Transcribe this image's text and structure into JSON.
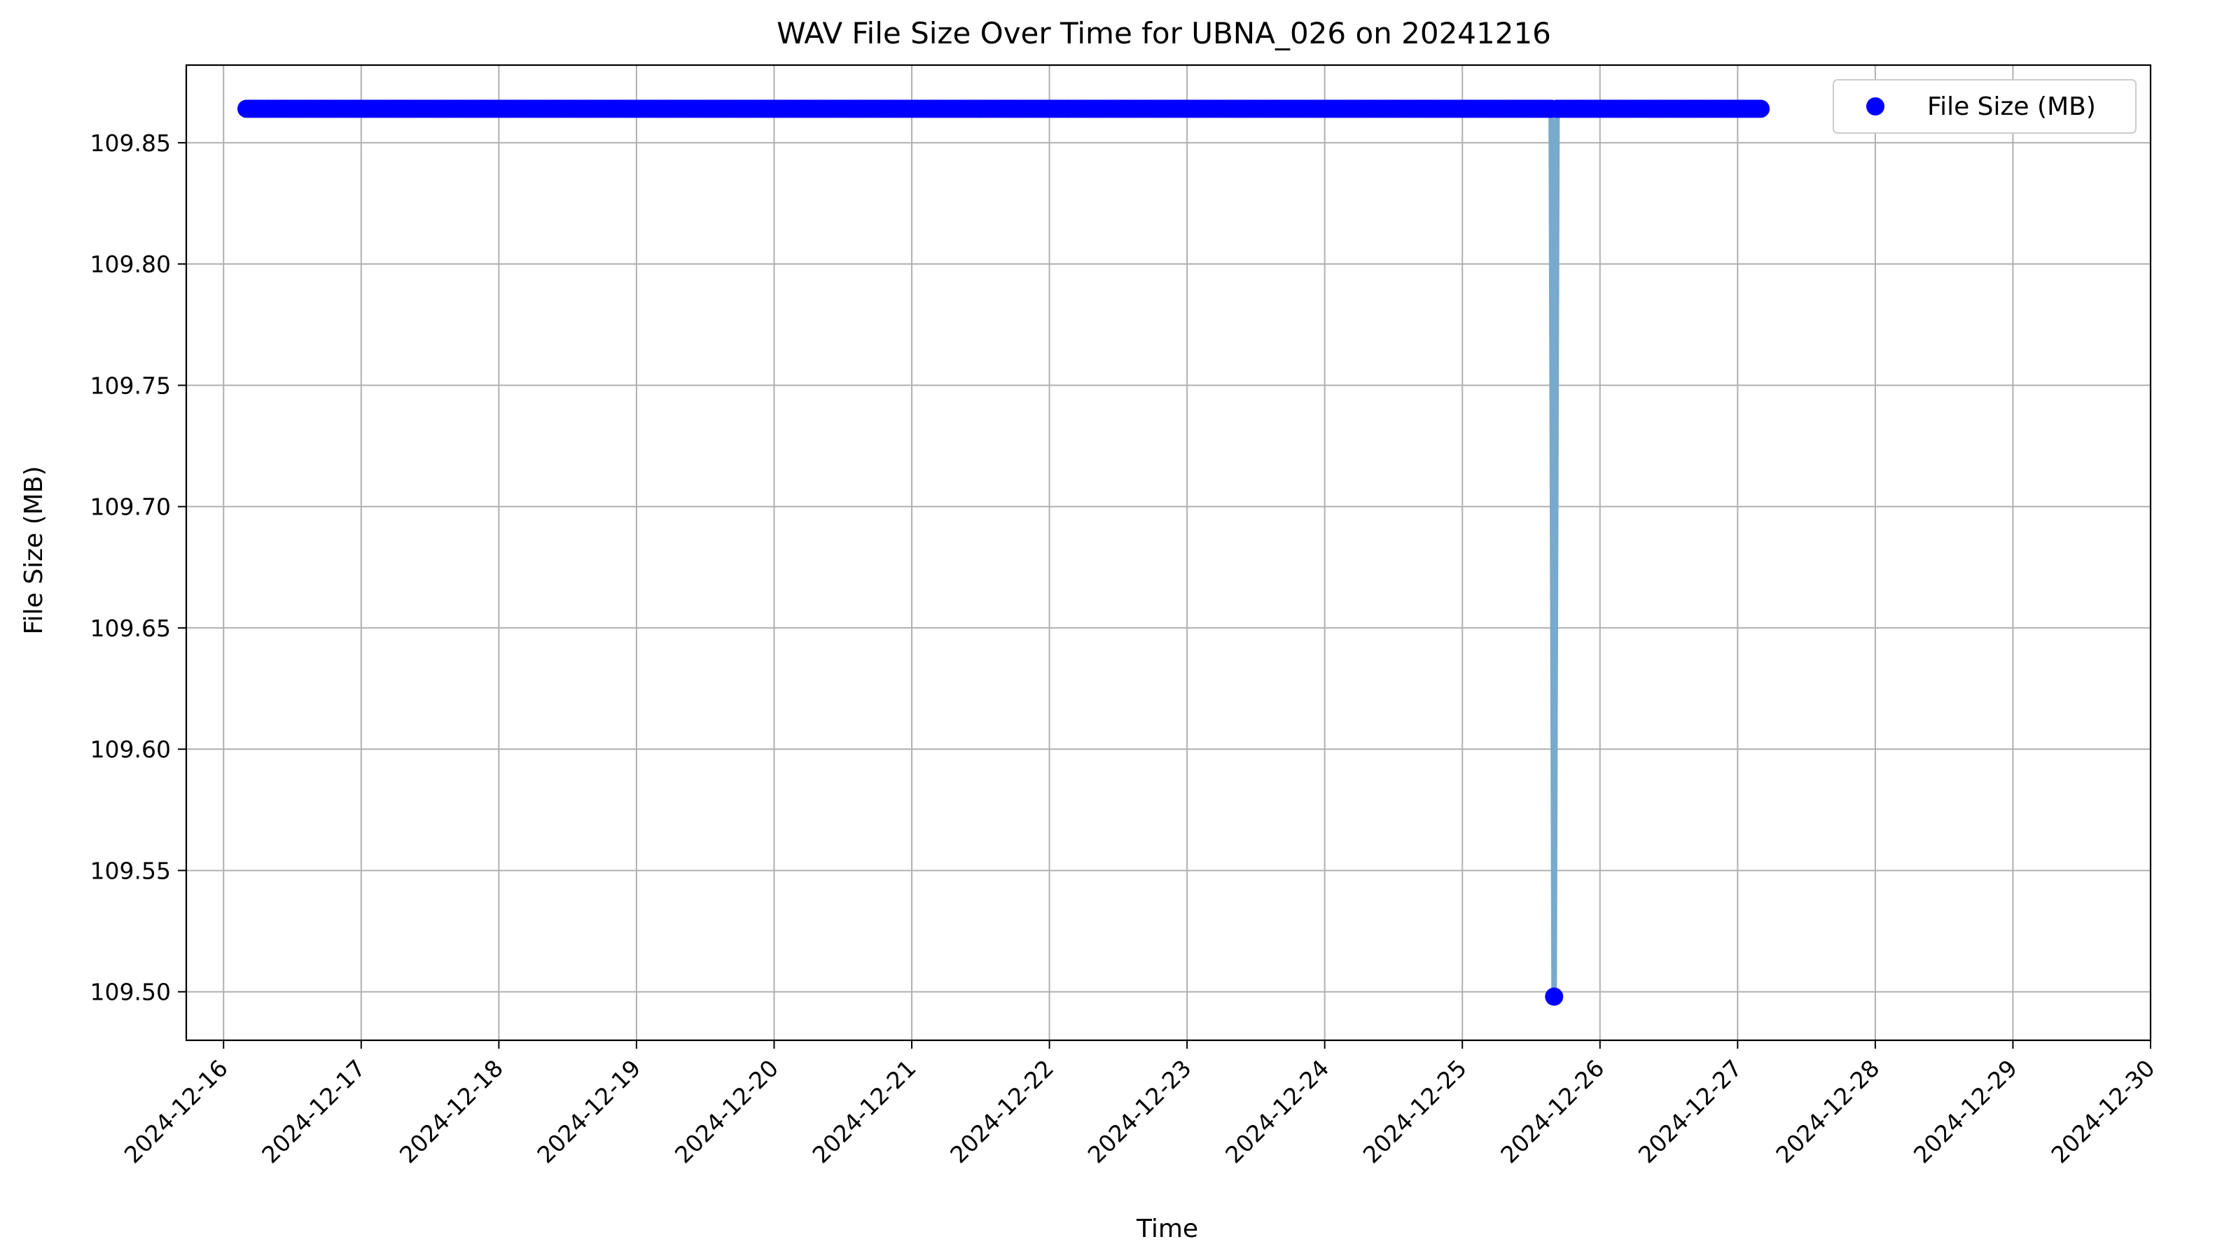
{
  "chart_data": {
    "type": "scatter",
    "title": "WAV File Size Over Time for UBNA_026 on 20241216",
    "xlabel": "Time",
    "ylabel": "File Size (MB)",
    "xlim": [
      "2024-12-15T17:30",
      "2024-12-30T00:00"
    ],
    "ylim": [
      109.48,
      109.882
    ],
    "x_ticks": [
      "2024-12-16",
      "2024-12-17",
      "2024-12-18",
      "2024-12-19",
      "2024-12-20",
      "2024-12-21",
      "2024-12-22",
      "2024-12-23",
      "2024-12-24",
      "2024-12-25",
      "2024-12-26",
      "2024-12-27",
      "2024-12-28",
      "2024-12-29",
      "2024-12-30"
    ],
    "y_ticks": [
      "109.50",
      "109.55",
      "109.60",
      "109.65",
      "109.70",
      "109.75",
      "109.80",
      "109.85"
    ],
    "grid": true,
    "legend": {
      "position": "top-right"
    },
    "series": [
      {
        "name": "File Size (MB)",
        "kind": "scatter",
        "color": "#0000ff",
        "x_start": "2024-12-16T04:00",
        "x_end": "2024-12-27T04:00",
        "interval_minutes": 30,
        "default_value": 109.864,
        "exceptions": [
          {
            "x": "2024-12-25T16:00",
            "y": 109.498
          }
        ]
      },
      {
        "kind": "line",
        "color": "#77aacc",
        "x_start": "2024-12-16T04:00",
        "x_end": "2024-12-27T04:00",
        "interval_minutes": 30,
        "default_value": 109.864,
        "exceptions": [
          {
            "x": "2024-12-25T16:00",
            "y": 109.498
          }
        ]
      }
    ]
  }
}
